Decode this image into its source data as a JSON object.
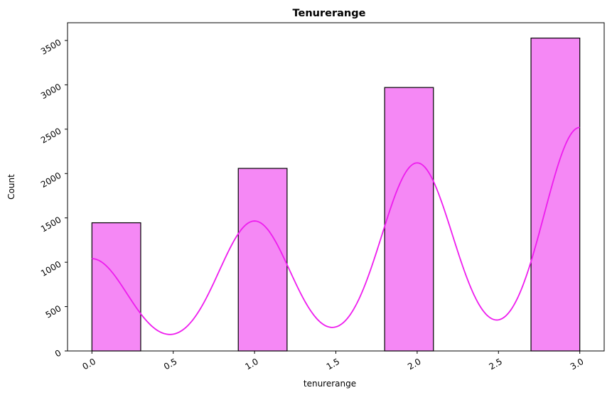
{
  "chart_data": {
    "type": "bar",
    "title": "Tenurerange",
    "xlabel": "tenurerange",
    "ylabel": "Count",
    "xlim": [
      -0.15,
      3.15
    ],
    "ylim": [
      0,
      3700
    ],
    "x_ticks": [
      0.0,
      0.5,
      1.0,
      1.5,
      2.0,
      2.5,
      3.0
    ],
    "x_tick_labels": [
      "0.0",
      "0.5",
      "1.0",
      "1.5",
      "2.0",
      "2.5",
      "3.0"
    ],
    "y_ticks": [
      0,
      500,
      1000,
      1500,
      2000,
      2500,
      3000,
      3500
    ],
    "y_tick_labels": [
      "0",
      "500",
      "1000",
      "1500",
      "2000",
      "2500",
      "3000",
      "3500"
    ],
    "bin_width": 0.3,
    "bins": [
      {
        "start": 0.0,
        "end": 0.3,
        "count": 1445
      },
      {
        "start": 0.3,
        "end": 0.6,
        "count": 0
      },
      {
        "start": 0.6,
        "end": 0.9,
        "count": 0
      },
      {
        "start": 0.9,
        "end": 1.2,
        "count": 2058
      },
      {
        "start": 1.2,
        "end": 1.5,
        "count": 0
      },
      {
        "start": 1.5,
        "end": 1.8,
        "count": 0
      },
      {
        "start": 1.8,
        "end": 2.1,
        "count": 2970
      },
      {
        "start": 2.1,
        "end": 2.4,
        "count": 0
      },
      {
        "start": 2.4,
        "end": 2.7,
        "count": 0
      },
      {
        "start": 2.7,
        "end": 3.0,
        "count": 3527
      }
    ],
    "kde": {
      "peaks": [
        {
          "x": 0.0,
          "count": 1040
        },
        {
          "x": 1.0,
          "count": 1465
        },
        {
          "x": 2.0,
          "count": 2120
        },
        {
          "x": 3.0,
          "count": 2520
        }
      ],
      "sigma": 0.22,
      "range": [
        0.0,
        3.0
      ]
    },
    "grid": false,
    "colors": {
      "bar_fill": "#f588f5",
      "bar_edge": "#000000",
      "kde_line": "#ee1cee"
    }
  }
}
